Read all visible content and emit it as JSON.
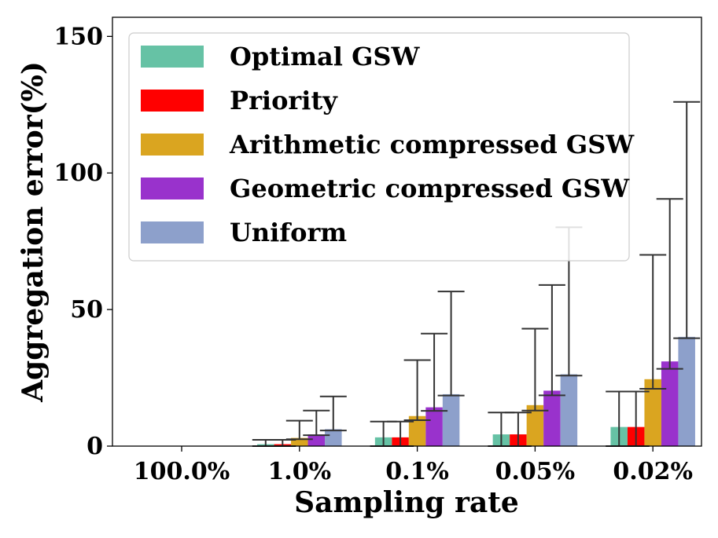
{
  "chart_data": {
    "type": "bar",
    "xlabel": "Sampling rate",
    "ylabel": "Aggregation error(%)",
    "categories": [
      "100.0%",
      "1.0%",
      "0.1%",
      "0.05%",
      "0.02%"
    ],
    "ylim": [
      0,
      157
    ],
    "yticks": [
      0,
      50,
      100,
      150
    ],
    "grid": false,
    "legend_position": "top-left",
    "error_bars": true,
    "series": [
      {
        "name": "Optimal GSW",
        "color": "#66c2a5",
        "values": [
          0,
          0.7,
          3.2,
          4.3,
          7.0
        ],
        "err_low": [
          0,
          0.7,
          3.2,
          4.3,
          7.0
        ],
        "err_high": [
          0,
          1.6,
          5.8,
          8.0,
          13.0
        ]
      },
      {
        "name": "Priority",
        "color": "#ff0000",
        "values": [
          0,
          0.7,
          3.2,
          4.3,
          7.0
        ],
        "err_low": [
          0,
          0.7,
          3.2,
          4.3,
          7.0
        ],
        "err_high": [
          0,
          1.6,
          5.8,
          8.0,
          13.0
        ]
      },
      {
        "name": "Arithmetic compressed GSW",
        "color": "#daa520",
        "values": [
          0,
          3.0,
          11.0,
          15.0,
          24.5
        ],
        "err_low": [
          0,
          0.5,
          1.5,
          2.0,
          3.5
        ],
        "err_high": [
          0,
          6.3,
          20.5,
          28.0,
          45.5
        ]
      },
      {
        "name": "Geometric compressed GSW",
        "color": "#9932cc",
        "values": [
          0,
          4.3,
          14.2,
          20.3,
          31.0
        ],
        "err_low": [
          0,
          0.3,
          1.3,
          1.7,
          2.7
        ],
        "err_high": [
          0,
          8.7,
          27.0,
          38.7,
          59.5
        ]
      },
      {
        "name": "Uniform",
        "color": "#8da0cb",
        "values": [
          0,
          6.2,
          19.0,
          26.3,
          40.0
        ],
        "err_low": [
          0,
          0.5,
          0.5,
          0.5,
          0.5
        ],
        "err_high": [
          0,
          12.0,
          37.6,
          53.8,
          86.0
        ]
      }
    ]
  }
}
